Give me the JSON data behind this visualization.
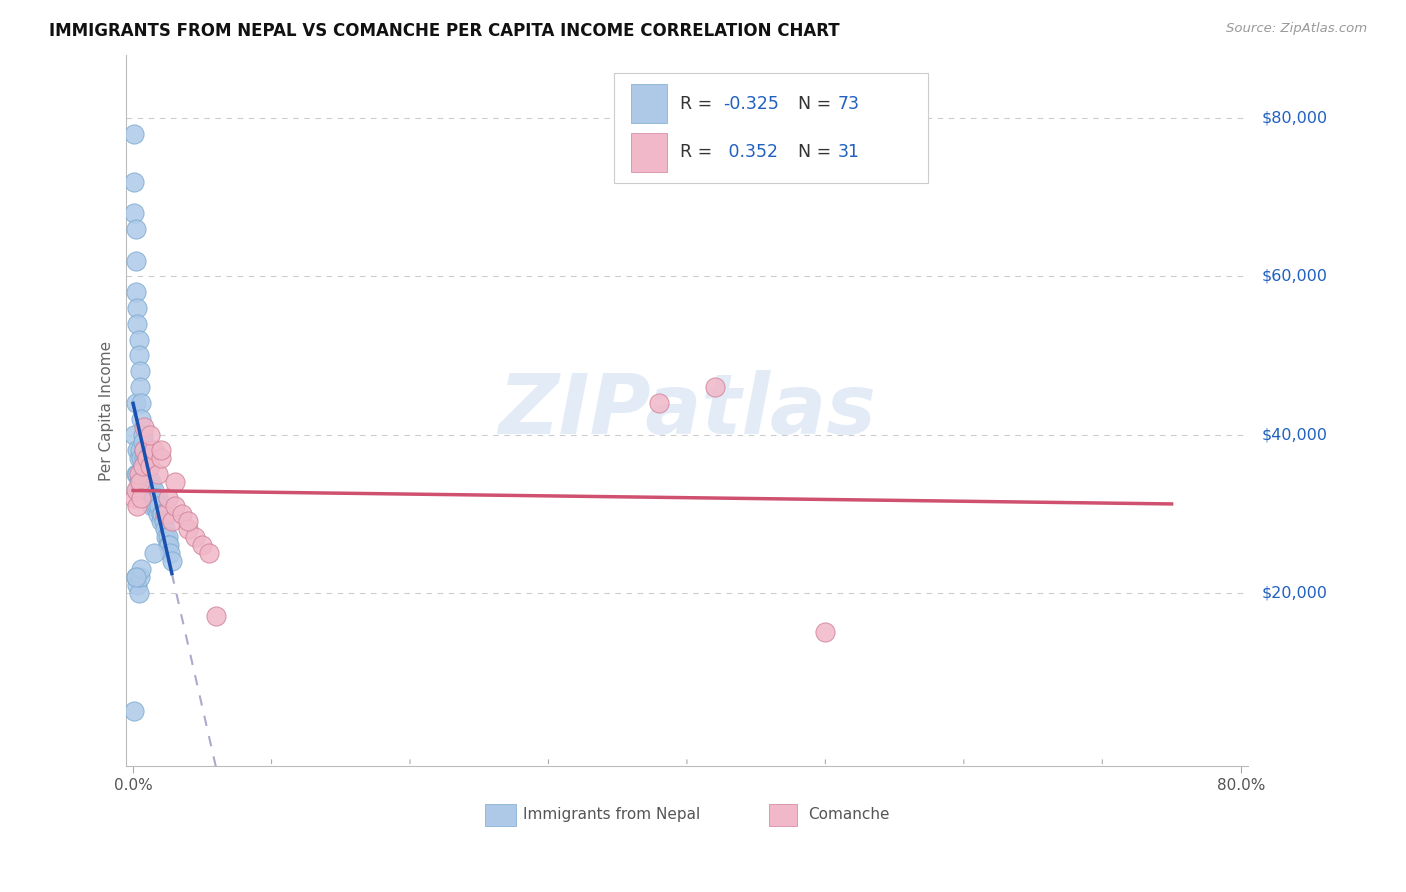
{
  "title": "IMMIGRANTS FROM NEPAL VS COMANCHE PER CAPITA INCOME CORRELATION CHART",
  "source": "Source: ZipAtlas.com",
  "ylabel": "Per Capita Income",
  "blue_color": "#aec9e8",
  "blue_edge": "#7aaad0",
  "pink_color": "#f0b8c8",
  "pink_edge": "#d08098",
  "blue_line": "#1a50b0",
  "pink_line": "#d05070",
  "dash_color": "#aaaacc",
  "watermark": "ZIPatlas",
  "R_nepal": -0.325,
  "N_nepal": 73,
  "R_comanche": 0.352,
  "N_comanche": 31,
  "nepal_x": [
    0.001,
    0.001,
    0.001,
    0.001,
    0.002,
    0.002,
    0.002,
    0.002,
    0.002,
    0.003,
    0.003,
    0.003,
    0.003,
    0.003,
    0.004,
    0.004,
    0.004,
    0.004,
    0.005,
    0.005,
    0.005,
    0.005,
    0.006,
    0.006,
    0.006,
    0.006,
    0.007,
    0.007,
    0.007,
    0.008,
    0.008,
    0.008,
    0.009,
    0.009,
    0.009,
    0.01,
    0.01,
    0.01,
    0.011,
    0.011,
    0.012,
    0.012,
    0.013,
    0.013,
    0.014,
    0.014,
    0.015,
    0.015,
    0.016,
    0.016,
    0.017,
    0.018,
    0.018,
    0.019,
    0.02,
    0.02,
    0.021,
    0.022,
    0.023,
    0.024,
    0.025,
    0.025,
    0.026,
    0.027,
    0.028,
    0.002,
    0.003,
    0.004,
    0.005,
    0.006,
    0.001,
    0.002,
    0.015
  ],
  "nepal_y": [
    78000,
    72000,
    68000,
    40000,
    66000,
    62000,
    58000,
    44000,
    35000,
    56000,
    54000,
    38000,
    35000,
    33000,
    52000,
    50000,
    37000,
    34000,
    48000,
    46000,
    38000,
    35000,
    44000,
    42000,
    37000,
    34000,
    40000,
    39000,
    36000,
    38000,
    37000,
    35000,
    37000,
    36000,
    34000,
    36000,
    35000,
    33000,
    35000,
    34000,
    34000,
    33000,
    34000,
    32000,
    33000,
    31000,
    33000,
    32000,
    32000,
    31000,
    31000,
    32000,
    30000,
    31000,
    30000,
    29000,
    30000,
    29000,
    28000,
    27000,
    27000,
    26000,
    26000,
    25000,
    24000,
    22000,
    21000,
    20000,
    22000,
    23000,
    5000,
    22000,
    25000
  ],
  "comanche_x": [
    0.001,
    0.002,
    0.003,
    0.004,
    0.005,
    0.006,
    0.007,
    0.008,
    0.01,
    0.012,
    0.015,
    0.018,
    0.02,
    0.023,
    0.025,
    0.028,
    0.03,
    0.035,
    0.04,
    0.045,
    0.05,
    0.055,
    0.06,
    0.008,
    0.012,
    0.02,
    0.03,
    0.04,
    0.38,
    0.42,
    0.5
  ],
  "comanche_y": [
    32000,
    33000,
    31000,
    35000,
    34000,
    32000,
    36000,
    38000,
    37000,
    36000,
    38000,
    35000,
    37000,
    30000,
    32000,
    29000,
    31000,
    30000,
    28000,
    27000,
    26000,
    25000,
    17000,
    41000,
    40000,
    38000,
    34000,
    29000,
    44000,
    46000,
    15000
  ],
  "ytick_vals": [
    20000,
    40000,
    60000,
    80000
  ],
  "ytick_labels": [
    "$20,000",
    "$40,000",
    "$60,000",
    "$80,000"
  ],
  "ymin": 0,
  "ymax": 88000,
  "xmin": 0.0,
  "xmax": 0.8,
  "xtick_minor": [
    0.1,
    0.2,
    0.3,
    0.4,
    0.5,
    0.6,
    0.7
  ]
}
